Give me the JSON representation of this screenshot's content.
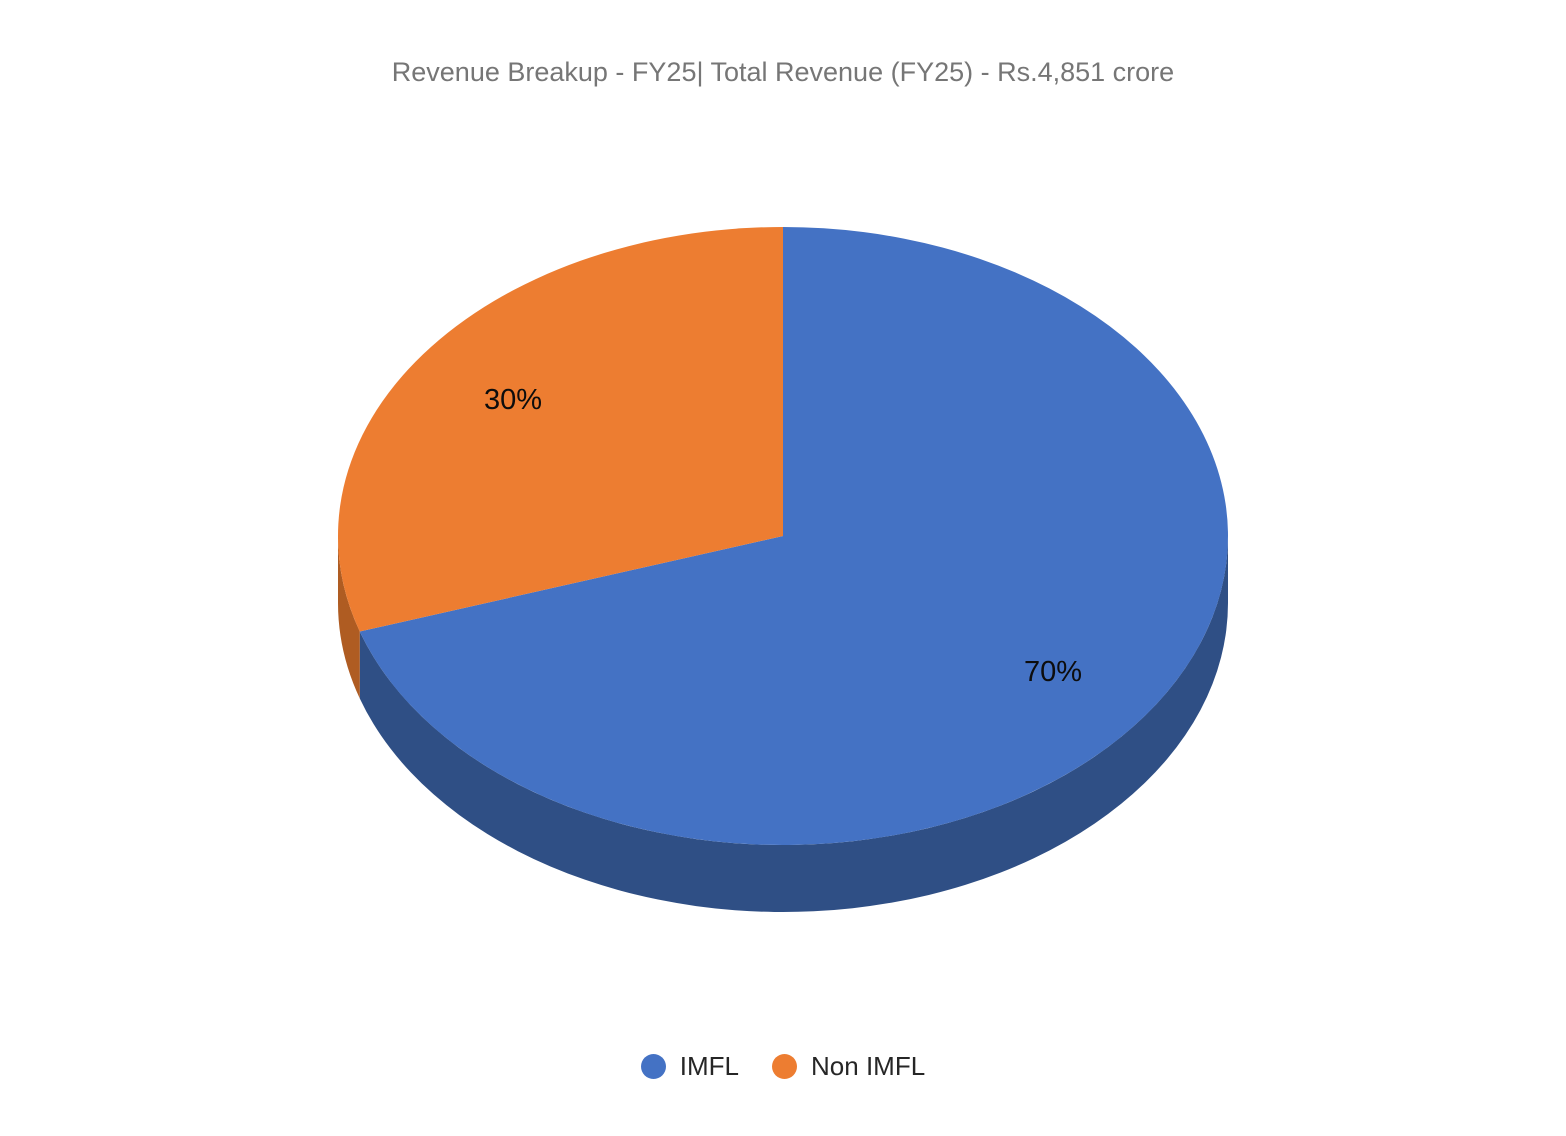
{
  "page": {
    "background": "#ffffff"
  },
  "chart_data": {
    "type": "pie",
    "style": "3d",
    "title": "Revenue Breakup - FY25| Total Revenue (FY25) - Rs.4,851 crore",
    "title_color": "#767676",
    "total_revenue_crore": 4851,
    "start_angle_deg": 0,
    "direction": "clockwise",
    "legend_position": "bottom",
    "grid": false,
    "label_color": "#0d0d0d",
    "legend_text_color": "#262626",
    "slices": [
      {
        "label": "IMFL",
        "value": 70,
        "display": "70%",
        "color": "#4472C4",
        "side_color": "#2F4F85"
      },
      {
        "label": "Non IMFL",
        "value": 30,
        "display": "30%",
        "color": "#ED7D31",
        "side_color": "#AF5C22"
      }
    ]
  }
}
